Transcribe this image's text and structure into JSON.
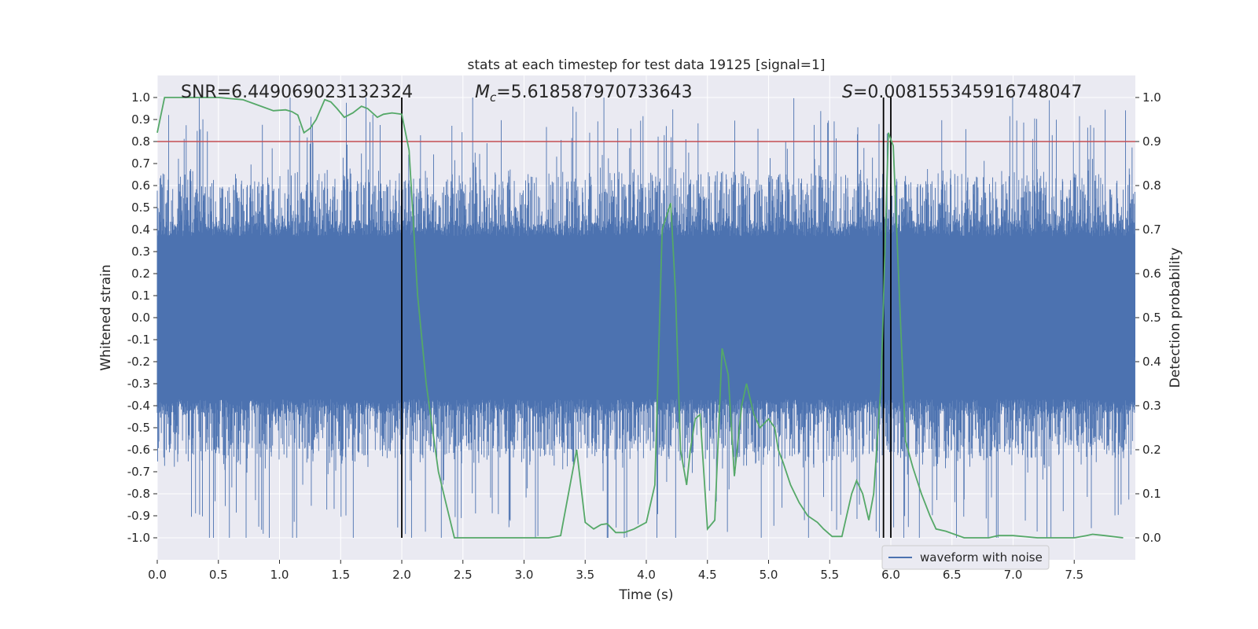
{
  "chart_data": {
    "type": "line",
    "title": "stats at each timestep for test data 19125 [signal=1]",
    "xlabel": "Time (s)",
    "ylabel": "Whitened strain",
    "y2label": "Detection probability",
    "xlim": [
      0.0,
      8.0
    ],
    "ylim": [
      -1.1,
      1.1
    ],
    "y2lim": [
      -0.05,
      1.05
    ],
    "x_ticks": [
      "0.0",
      "0.5",
      "1.0",
      "1.5",
      "2.0",
      "2.5",
      "3.0",
      "3.5",
      "4.0",
      "4.5",
      "5.0",
      "5.5",
      "6.0",
      "6.5",
      "7.0",
      "7.5"
    ],
    "y_ticks": [
      "1.0",
      "0.9",
      "0.8",
      "0.7",
      "0.6",
      "0.5",
      "0.4",
      "0.3",
      "0.2",
      "0.1",
      "0.0",
      "-0.1",
      "-0.2",
      "-0.3",
      "-0.4",
      "-0.5",
      "-0.6",
      "-0.7",
      "-0.8",
      "-0.9",
      "-1.0"
    ],
    "y2_ticks": [
      "1.0",
      "0.9",
      "0.8",
      "0.7",
      "0.6",
      "0.5",
      "0.4",
      "0.3",
      "0.2",
      "0.1",
      "0.0"
    ],
    "grid": true,
    "legend_position": "bottom-right",
    "annotations": {
      "snr": "SNR=6.449069023132324",
      "mc_symbol": "M",
      "mc_sub": "c",
      "mc_value": "=5.618587970733643",
      "s_symbol": "S",
      "s_value": "=0.008155345916748047"
    },
    "threshold": {
      "value": 0.9,
      "axis": "y2",
      "color": "#c44e52"
    },
    "vertical_lines": [
      2.0,
      5.94,
      6.0
    ],
    "series": [
      {
        "name": "waveform with noise",
        "axis": "y",
        "color": "#4c72b0",
        "kind": "noise",
        "envelope": {
          "typical_upper": 0.4,
          "typical_lower": -0.4,
          "max": 1.0,
          "min": -1.0
        }
      },
      {
        "axis": "y2",
        "color": "#55a868",
        "x": [
          0.0,
          0.06,
          0.12,
          0.2,
          0.3,
          0.5,
          0.7,
          0.8,
          0.95,
          1.05,
          1.1,
          1.15,
          1.2,
          1.25,
          1.3,
          1.37,
          1.42,
          1.47,
          1.53,
          1.6,
          1.67,
          1.72,
          1.8,
          1.85,
          1.92,
          2.0,
          2.06,
          2.13,
          2.2,
          2.3,
          2.36,
          2.43,
          2.5,
          2.6,
          3.0,
          3.2,
          3.3,
          3.43,
          3.5,
          3.57,
          3.63,
          3.68,
          3.75,
          3.82,
          3.9,
          4.0,
          4.07,
          4.13,
          4.2,
          4.24,
          4.28,
          4.33,
          4.36,
          4.4,
          4.44,
          4.5,
          4.56,
          4.62,
          4.67,
          4.72,
          4.78,
          4.82,
          4.88,
          4.93,
          5.0,
          5.05,
          5.08,
          5.12,
          5.18,
          5.25,
          5.32,
          5.4,
          5.45,
          5.52,
          5.6,
          5.68,
          5.72,
          5.77,
          5.82,
          5.86,
          5.92,
          5.98,
          6.02,
          6.06,
          6.12,
          6.18,
          6.25,
          6.32,
          6.37,
          6.45,
          6.6,
          6.8,
          6.88,
          7.0,
          7.2,
          7.5,
          7.6,
          7.65,
          7.75,
          7.9
        ],
        "y": [
          0.92,
          1.0,
          1.0,
          1.0,
          1.0,
          1.0,
          0.995,
          0.985,
          0.97,
          0.972,
          0.968,
          0.96,
          0.92,
          0.93,
          0.95,
          0.995,
          0.99,
          0.975,
          0.955,
          0.965,
          0.98,
          0.975,
          0.955,
          0.962,
          0.965,
          0.962,
          0.88,
          0.55,
          0.35,
          0.15,
          0.08,
          0.0,
          0.0,
          0.0,
          0.0,
          0.0,
          0.005,
          0.2,
          0.035,
          0.02,
          0.03,
          0.032,
          0.012,
          0.012,
          0.02,
          0.035,
          0.12,
          0.7,
          0.76,
          0.55,
          0.2,
          0.12,
          0.2,
          0.27,
          0.28,
          0.02,
          0.04,
          0.43,
          0.37,
          0.14,
          0.3,
          0.35,
          0.28,
          0.25,
          0.27,
          0.25,
          0.2,
          0.17,
          0.12,
          0.08,
          0.05,
          0.035,
          0.02,
          0.003,
          0.003,
          0.1,
          0.13,
          0.1,
          0.04,
          0.1,
          0.35,
          0.92,
          0.89,
          0.62,
          0.22,
          0.16,
          0.1,
          0.05,
          0.02,
          0.015,
          0.0,
          0.0,
          0.005,
          0.005,
          0.0,
          0.0,
          0.005,
          0.008,
          0.005,
          0.0
        ]
      }
    ]
  },
  "legend": {
    "label": "waveform with noise"
  }
}
